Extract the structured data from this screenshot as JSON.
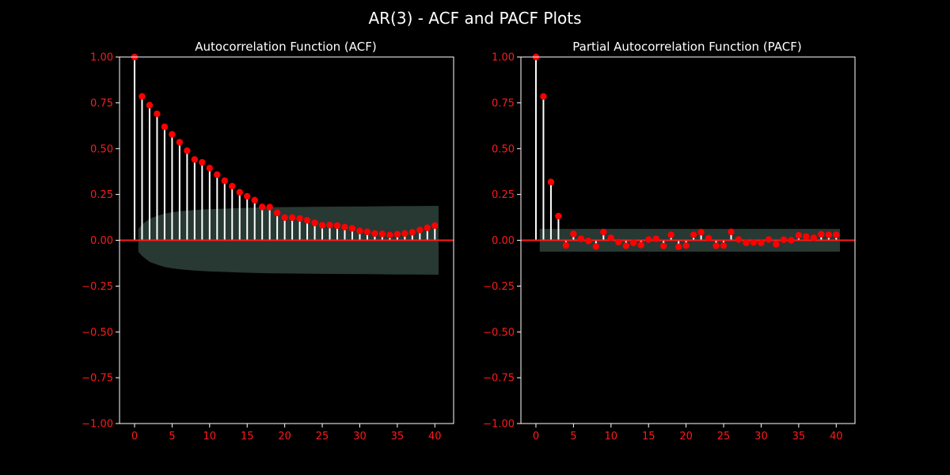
{
  "figure": {
    "title": "AR(3) - ACF and PACF Plots",
    "colors": {
      "background": "#000000",
      "text": "#ffffff",
      "ticks": "#ff1a1a",
      "markers": "#ff0000",
      "stems": "#ffffff",
      "band": "#2a3b36"
    }
  },
  "chart_data": [
    {
      "type": "scatter",
      "title": "Autocorrelation Function (ACF)",
      "xlabel": "",
      "ylabel": "",
      "xlim": [
        -2,
        42.5
      ],
      "ylim": [
        -1.0,
        1.0
      ],
      "xticks": [
        0,
        5,
        10,
        15,
        20,
        25,
        30,
        35,
        40
      ],
      "yticks": [
        -1.0,
        -0.75,
        -0.5,
        -0.25,
        0.0,
        0.25,
        0.5,
        0.75,
        1.0
      ],
      "ytick_labels": [
        "−1.00",
        "−0.75",
        "−0.50",
        "−0.25",
        "0.00",
        "0.25",
        "0.50",
        "0.75",
        "1.00"
      ],
      "grid": false,
      "lags": [
        0,
        1,
        2,
        3,
        4,
        5,
        6,
        7,
        8,
        9,
        10,
        11,
        12,
        13,
        14,
        15,
        16,
        17,
        18,
        19,
        20,
        21,
        22,
        23,
        24,
        25,
        26,
        27,
        28,
        29,
        30,
        31,
        32,
        33,
        34,
        35,
        36,
        37,
        38,
        39,
        40
      ],
      "values": [
        1.0,
        0.785,
        0.737,
        0.69,
        0.619,
        0.578,
        0.535,
        0.489,
        0.441,
        0.425,
        0.394,
        0.358,
        0.325,
        0.295,
        0.262,
        0.24,
        0.219,
        0.182,
        0.181,
        0.149,
        0.124,
        0.124,
        0.119,
        0.109,
        0.095,
        0.082,
        0.083,
        0.08,
        0.072,
        0.065,
        0.051,
        0.046,
        0.037,
        0.035,
        0.029,
        0.033,
        0.037,
        0.044,
        0.056,
        0.068,
        0.08
      ],
      "confidence_band": {
        "lags": [
          0.5,
          1,
          2,
          3,
          4,
          5,
          6,
          7,
          8,
          9,
          10,
          12,
          14,
          16,
          18,
          20,
          22,
          25,
          28,
          31,
          34,
          37,
          40.5
        ],
        "upper": [
          0.062,
          0.085,
          0.118,
          0.133,
          0.146,
          0.153,
          0.158,
          0.162,
          0.165,
          0.168,
          0.17,
          0.173,
          0.176,
          0.178,
          0.18,
          0.181,
          0.182,
          0.183,
          0.184,
          0.185,
          0.186,
          0.187,
          0.188
        ]
      }
    },
    {
      "type": "scatter",
      "title": "Partial Autocorrelation Function (PACF)",
      "xlabel": "",
      "ylabel": "",
      "xlim": [
        -2,
        42.5
      ],
      "ylim": [
        -1.0,
        1.0
      ],
      "xticks": [
        0,
        5,
        10,
        15,
        20,
        25,
        30,
        35,
        40
      ],
      "yticks": [
        -1.0,
        -0.75,
        -0.5,
        -0.25,
        0.0,
        0.25,
        0.5,
        0.75,
        1.0
      ],
      "ytick_labels": [
        "−1.00",
        "−0.75",
        "−0.50",
        "−0.25",
        "0.00",
        "0.25",
        "0.50",
        "0.75",
        "1.00"
      ],
      "grid": false,
      "lags": [
        0,
        1,
        2,
        3,
        4,
        5,
        6,
        7,
        8,
        9,
        10,
        11,
        12,
        13,
        14,
        15,
        16,
        17,
        18,
        19,
        20,
        21,
        22,
        23,
        24,
        25,
        26,
        27,
        28,
        29,
        30,
        31,
        32,
        33,
        34,
        35,
        36,
        37,
        38,
        39,
        40
      ],
      "values": [
        1.0,
        0.785,
        0.318,
        0.132,
        -0.028,
        0.035,
        0.008,
        -0.004,
        -0.034,
        0.045,
        0.013,
        -0.01,
        -0.03,
        -0.014,
        -0.026,
        0.004,
        0.008,
        -0.031,
        0.03,
        -0.036,
        -0.029,
        0.03,
        0.044,
        0.011,
        -0.03,
        -0.029,
        0.046,
        0.004,
        -0.014,
        -0.012,
        -0.015,
        0.004,
        -0.022,
        0.003,
        0.0,
        0.027,
        0.02,
        0.013,
        0.033,
        0.03,
        0.03
      ],
      "confidence_band": {
        "lags": [
          0.5,
          40.5
        ],
        "upper": [
          0.062,
          0.062
        ]
      }
    }
  ]
}
